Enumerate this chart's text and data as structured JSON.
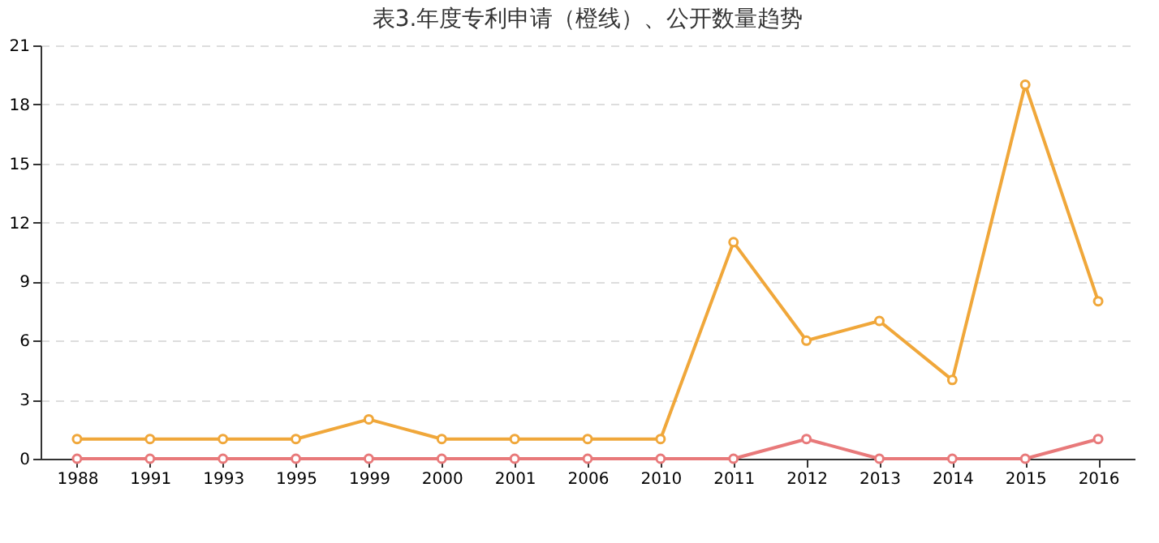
{
  "chart_data": {
    "type": "line",
    "title": "表3.年度专利申请（橙线）、公开数量趋势",
    "categories": [
      "1988",
      "1991",
      "1993",
      "1995",
      "1999",
      "2000",
      "2001",
      "2006",
      "2010",
      "2011",
      "2012",
      "2013",
      "2014",
      "2015",
      "2016"
    ],
    "series": [
      {
        "color": "#f0a73a",
        "values": [
          1,
          1,
          1,
          1,
          2,
          1,
          1,
          1,
          1,
          11,
          6,
          7,
          4,
          19,
          8
        ]
      },
      {
        "color": "#e8797a",
        "values": [
          0,
          0,
          0,
          0,
          0,
          0,
          0,
          0,
          0,
          0,
          1,
          0,
          0,
          0,
          1
        ]
      }
    ],
    "ylim": [
      0,
      21
    ],
    "yticks": [
      0,
      3,
      6,
      9,
      12,
      15,
      18,
      21
    ],
    "grid": "y",
    "legend": false,
    "marker": "circle",
    "line_style": "solid"
  }
}
